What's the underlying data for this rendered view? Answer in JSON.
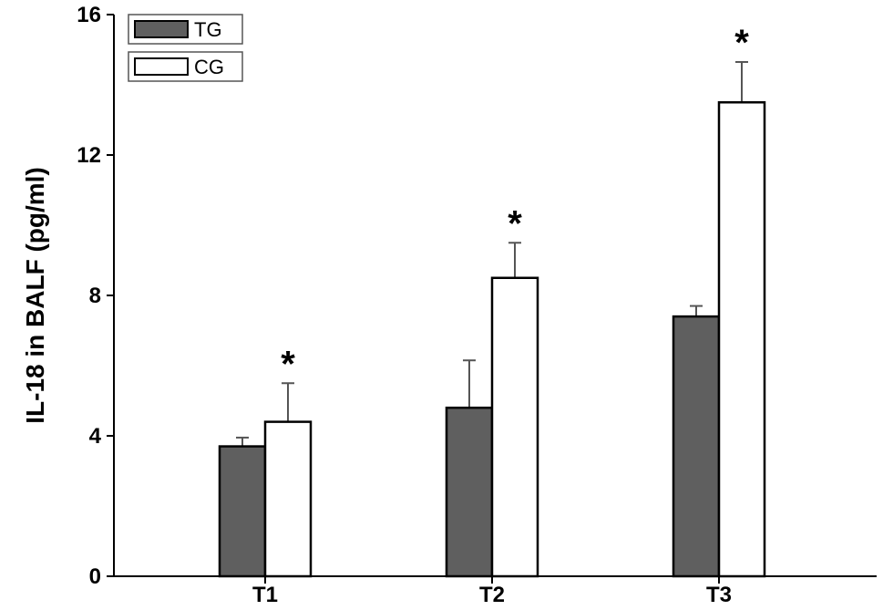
{
  "chart_data": {
    "type": "bar",
    "title": "",
    "xlabel": "",
    "ylabel": "IL-18 in BALF (pg/ml)",
    "ylim": [
      0,
      16
    ],
    "yticks": [
      "0",
      "4",
      "8",
      "12",
      "16"
    ],
    "categories": [
      "T1",
      "T2",
      "T3"
    ],
    "series": [
      {
        "name": "TG",
        "color": "#5f5f5f",
        "values": [
          3.7,
          4.8,
          7.4
        ],
        "errors": [
          0.25,
          1.35,
          0.3
        ]
      },
      {
        "name": "CG",
        "color": "#ffffff",
        "values": [
          4.4,
          8.5,
          13.5
        ],
        "errors": [
          1.1,
          1.0,
          1.15
        ]
      }
    ],
    "significance": [
      "*",
      "*",
      "*"
    ],
    "grid": false,
    "legend_position": "top-left"
  }
}
